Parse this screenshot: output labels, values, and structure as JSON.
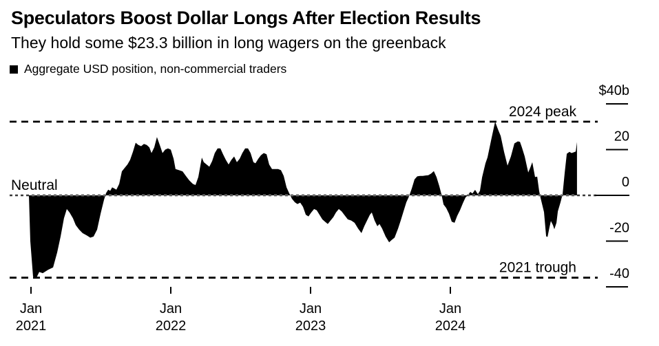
{
  "header": {
    "title": "Speculators Boost Dollar Longs After Election Results",
    "subtitle": "They hold some $23.3 billion in long wagers on the greenback"
  },
  "legend": {
    "label": "Aggregate USD position, non-commercial traders"
  },
  "colors": {
    "ink": "#000000",
    "background": "#ffffff",
    "area_fill": "#000000",
    "neutral_line": "#3a3a3a",
    "neutral_line_over_area": "#929292"
  },
  "chart_data": {
    "type": "area",
    "title": "Aggregate USD position, non-commercial traders",
    "unit": "billions of US dollars",
    "grid": false,
    "legend_position": "top-left",
    "x_axis": {
      "range_years": [
        2020.85,
        2025.06
      ],
      "ticks": [
        {
          "month": "Jan",
          "year": "2021",
          "value": 2021
        },
        {
          "month": "Jan",
          "year": "2022",
          "value": 2022
        },
        {
          "month": "Jan",
          "year": "2023",
          "value": 2023
        },
        {
          "month": "Jan",
          "year": "2024",
          "value": 2024
        }
      ]
    },
    "y_axis": {
      "range": [
        -44,
        45
      ],
      "ticks": [
        {
          "label": "$40b",
          "value": 40
        },
        {
          "label": "20",
          "value": 20
        },
        {
          "label": "0",
          "value": 0
        },
        {
          "label": "-20",
          "value": -20
        },
        {
          "label": "-40",
          "value": -40
        }
      ]
    },
    "reference_lines": [
      {
        "id": "peak-2024",
        "label": "2024 peak",
        "value": 32.2,
        "style": "dashed",
        "label_side": "right"
      },
      {
        "id": "neutral",
        "label": "Neutral",
        "value": 0,
        "style": "dashed",
        "label_side": "left"
      },
      {
        "id": "trough-2021",
        "label": "2021 trough",
        "value": -36,
        "style": "dashed",
        "label_side": "right"
      }
    ],
    "series": [
      {
        "name": "Aggregate USD position, non-commercial traders",
        "color": "#000000",
        "points": [
          [
            2020.985,
            0
          ],
          [
            2020.995,
            -20
          ],
          [
            2021.015,
            -35.5
          ],
          [
            2021.039,
            -36
          ],
          [
            2021.059,
            -33.5
          ],
          [
            2021.084,
            -34
          ],
          [
            2021.123,
            -32.5
          ],
          [
            2021.158,
            -31.5
          ],
          [
            2021.187,
            -25
          ],
          [
            2021.212,
            -18
          ],
          [
            2021.236,
            -10
          ],
          [
            2021.256,
            -6
          ],
          [
            2021.276,
            -7.5
          ],
          [
            2021.3,
            -10
          ],
          [
            2021.32,
            -13
          ],
          [
            2021.345,
            -15
          ],
          [
            2021.369,
            -16.5
          ],
          [
            2021.399,
            -17.5
          ],
          [
            2021.424,
            -18.5
          ],
          [
            2021.448,
            -18
          ],
          [
            2021.473,
            -15
          ],
          [
            2021.498,
            -8
          ],
          [
            2021.522,
            -2
          ],
          [
            2021.537,
            1
          ],
          [
            2021.552,
            2.5
          ],
          [
            2021.567,
            2
          ],
          [
            2021.581,
            3.5
          ],
          [
            2021.596,
            3
          ],
          [
            2021.611,
            2.5
          ],
          [
            2021.631,
            5
          ],
          [
            2021.65,
            10.5
          ],
          [
            2021.67,
            12
          ],
          [
            2021.69,
            13.5
          ],
          [
            2021.709,
            15.5
          ],
          [
            2021.729,
            19
          ],
          [
            2021.749,
            23
          ],
          [
            2021.768,
            22
          ],
          [
            2021.788,
            21.5
          ],
          [
            2021.808,
            22.5
          ],
          [
            2021.828,
            22
          ],
          [
            2021.847,
            21
          ],
          [
            2021.862,
            18.5
          ],
          [
            2021.882,
            21
          ],
          [
            2021.901,
            25.5
          ],
          [
            2021.921,
            22
          ],
          [
            2021.941,
            18.5
          ],
          [
            2021.96,
            20
          ],
          [
            2021.98,
            20.5
          ],
          [
            2022.0,
            20
          ],
          [
            2022.02,
            16
          ],
          [
            2022.034,
            11.5
          ],
          [
            2022.059,
            11
          ],
          [
            2022.084,
            10.5
          ],
          [
            2022.108,
            8.5
          ],
          [
            2022.133,
            6.5
          ],
          [
            2022.158,
            5
          ],
          [
            2022.177,
            4.5
          ],
          [
            2022.197,
            8
          ],
          [
            2022.222,
            16.5
          ],
          [
            2022.236,
            14.5
          ],
          [
            2022.256,
            13.5
          ],
          [
            2022.276,
            12.5
          ],
          [
            2022.296,
            15
          ],
          [
            2022.315,
            18.5
          ],
          [
            2022.335,
            20.5
          ],
          [
            2022.355,
            20.5
          ],
          [
            2022.374,
            18
          ],
          [
            2022.394,
            15.5
          ],
          [
            2022.414,
            13.5
          ],
          [
            2022.433,
            15.5
          ],
          [
            2022.453,
            17
          ],
          [
            2022.473,
            14.5
          ],
          [
            2022.493,
            16
          ],
          [
            2022.512,
            18.5
          ],
          [
            2022.532,
            20.5
          ],
          [
            2022.552,
            20.5
          ],
          [
            2022.571,
            18.5
          ],
          [
            2022.591,
            14.5
          ],
          [
            2022.606,
            14
          ],
          [
            2022.626,
            16
          ],
          [
            2022.645,
            17.5
          ],
          [
            2022.665,
            18.5
          ],
          [
            2022.685,
            18
          ],
          [
            2022.704,
            13.5
          ],
          [
            2022.724,
            11.5
          ],
          [
            2022.749,
            11.5
          ],
          [
            2022.768,
            11.5
          ],
          [
            2022.788,
            11
          ],
          [
            2022.808,
            8.5
          ],
          [
            2022.828,
            3.5
          ],
          [
            2022.847,
            1
          ],
          [
            2022.867,
            -1.5
          ],
          [
            2022.887,
            -3
          ],
          [
            2022.906,
            -3.8
          ],
          [
            2022.926,
            -3.2
          ],
          [
            2022.946,
            -5
          ],
          [
            2022.966,
            -8.5
          ],
          [
            2022.985,
            -9.2
          ],
          [
            2023.005,
            -7.5
          ],
          [
            2023.025,
            -6
          ],
          [
            2023.044,
            -6.5
          ],
          [
            2023.064,
            -8.5
          ],
          [
            2023.084,
            -10.5
          ],
          [
            2023.103,
            -11.5
          ],
          [
            2023.123,
            -12.5
          ],
          [
            2023.143,
            -11
          ],
          [
            2023.163,
            -9.5
          ],
          [
            2023.182,
            -7.5
          ],
          [
            2023.202,
            -6
          ],
          [
            2023.222,
            -7
          ],
          [
            2023.241,
            -8.5
          ],
          [
            2023.266,
            -10.5
          ],
          [
            2023.291,
            -11
          ],
          [
            2023.315,
            -12
          ],
          [
            2023.34,
            -14.5
          ],
          [
            2023.364,
            -16.5
          ],
          [
            2023.384,
            -13.5
          ],
          [
            2023.404,
            -11
          ],
          [
            2023.424,
            -8.5
          ],
          [
            2023.438,
            -7.5
          ],
          [
            2023.458,
            -11
          ],
          [
            2023.478,
            -13.5
          ],
          [
            2023.493,
            -12.5
          ],
          [
            2023.512,
            -14.5
          ],
          [
            2023.537,
            -18
          ],
          [
            2023.562,
            -20.5
          ],
          [
            2023.581,
            -19.5
          ],
          [
            2023.601,
            -18.5
          ],
          [
            2023.626,
            -14.5
          ],
          [
            2023.645,
            -11
          ],
          [
            2023.665,
            -7
          ],
          [
            2023.685,
            -3
          ],
          [
            2023.704,
            -0.5
          ],
          [
            2023.724,
            3
          ],
          [
            2023.744,
            7
          ],
          [
            2023.763,
            8.3
          ],
          [
            2023.783,
            8.5
          ],
          [
            2023.803,
            8.5
          ],
          [
            2023.823,
            8.7
          ],
          [
            2023.842,
            8.8
          ],
          [
            2023.862,
            9.5
          ],
          [
            2023.882,
            10.6
          ],
          [
            2023.901,
            8
          ],
          [
            2023.921,
            4
          ],
          [
            2023.936,
            0.5
          ],
          [
            2023.951,
            -4
          ],
          [
            2023.97,
            -5.5
          ],
          [
            2023.99,
            -8
          ],
          [
            2024.01,
            -11.5
          ],
          [
            2024.03,
            -12
          ],
          [
            2024.049,
            -9
          ],
          [
            2024.069,
            -6.5
          ],
          [
            2024.089,
            -3.5
          ],
          [
            2024.108,
            -1
          ],
          [
            2024.128,
            0.3
          ],
          [
            2024.143,
            1.5
          ],
          [
            2024.158,
            0.8
          ],
          [
            2024.177,
            2.4
          ],
          [
            2024.197,
            0.5
          ],
          [
            2024.212,
            2
          ],
          [
            2024.227,
            7.9
          ],
          [
            2024.251,
            14
          ],
          [
            2024.266,
            16.6
          ],
          [
            2024.291,
            24
          ],
          [
            2024.32,
            32.2
          ],
          [
            2024.34,
            29
          ],
          [
            2024.36,
            26
          ],
          [
            2024.384,
            19
          ],
          [
            2024.409,
            13
          ],
          [
            2024.433,
            17
          ],
          [
            2024.458,
            22.7
          ],
          [
            2024.483,
            23.6
          ],
          [
            2024.498,
            23.4
          ],
          [
            2024.512,
            21
          ],
          [
            2024.532,
            17
          ],
          [
            2024.557,
            10
          ],
          [
            2024.571,
            12
          ],
          [
            2024.586,
            14.5
          ],
          [
            2024.606,
            8
          ],
          [
            2024.621,
            8.2
          ],
          [
            2024.635,
            2
          ],
          [
            2024.645,
            -1
          ],
          [
            2024.67,
            -7.3
          ],
          [
            2024.685,
            -17.9
          ],
          [
            2024.695,
            -18.2
          ],
          [
            2024.709,
            -14
          ],
          [
            2024.719,
            -11.2
          ],
          [
            2024.734,
            -13
          ],
          [
            2024.744,
            -14.8
          ],
          [
            2024.759,
            -12
          ],
          [
            2024.769,
            -7
          ],
          [
            2024.788,
            -3
          ],
          [
            2024.803,
            0.5
          ],
          [
            2024.818,
            10
          ],
          [
            2024.833,
            18.2
          ],
          [
            2024.852,
            19
          ],
          [
            2024.867,
            18.5
          ],
          [
            2024.882,
            18.8
          ],
          [
            2024.897,
            19.2
          ],
          [
            2024.906,
            23.3
          ]
        ]
      }
    ]
  }
}
